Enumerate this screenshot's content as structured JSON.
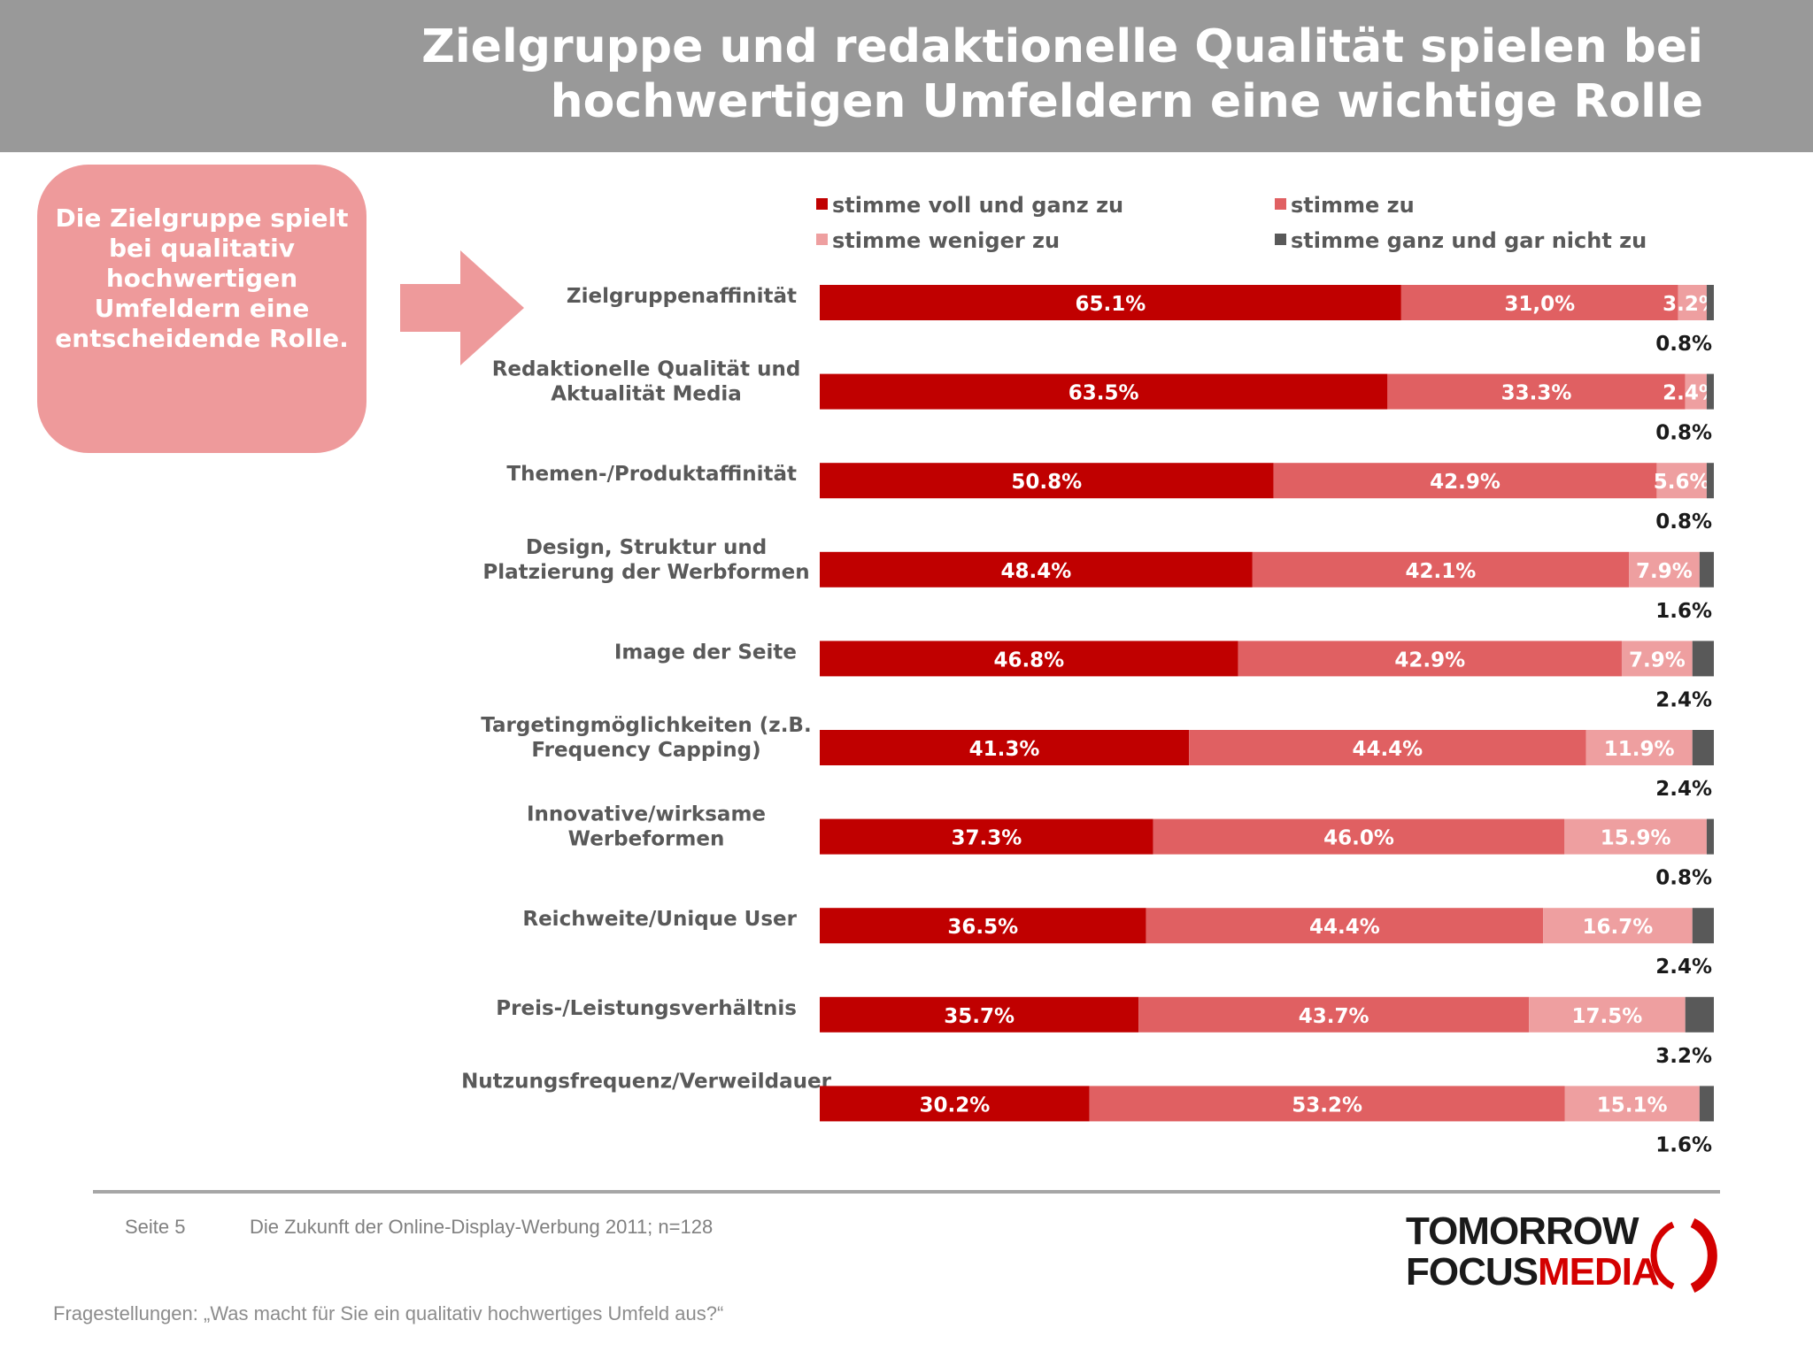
{
  "header": {
    "title_line1": "Zielgruppe und redaktionelle Qualität spielen bei",
    "title_line2": "hochwertigen Umfeldern eine wichtige Rolle"
  },
  "callout": {
    "text": "Die Zielgruppe spielt bei qualitativ hochwertigen Umfeldern eine entscheidende Rolle."
  },
  "footer": {
    "page": "Seite 5",
    "source": "Die Zukunft der Online-Display-Werbung 2011; n=128",
    "question": "Fragestellungen: „Was macht für Sie ein qualitativ hochwertiges Umfeld aus?“"
  },
  "logo": {
    "line1": "TOMORROW",
    "focus": "FOCUS",
    "media": "MEDIA"
  },
  "colors": {
    "header_bg": "#999999",
    "callout_bg": "#ee9a9b",
    "series": [
      "#c00000",
      "#e06062",
      "#ee9fa0",
      "#595959"
    ]
  },
  "chart_data": {
    "type": "bar",
    "orientation": "horizontal",
    "stacked": true,
    "percent_scale": [
      0,
      100
    ],
    "legend_position": "top",
    "categories": [
      "Zielgruppenaffinität",
      "Redaktionelle Qualität und Aktualität Media",
      "Themen-/Produktaffinität",
      "Design, Struktur und Platzierung der Werbformen",
      "Image der Seite",
      "Targetingmöglichkeiten (z.B. Frequency Capping)",
      "Innovative/wirksame Werbeformen",
      "Reichweite/Unique User",
      "Preis-/Leistungsverhältnis",
      "Nutzungsfrequenz/Verweildauer"
    ],
    "series": [
      {
        "name": "stimme voll und ganz zu",
        "values": [
          65.1,
          63.5,
          50.8,
          48.4,
          46.8,
          41.3,
          37.3,
          36.5,
          35.7,
          30.2
        ],
        "labels": [
          "65.1%",
          "63.5%",
          "50.8%",
          "48.4%",
          "46.8%",
          "41.3%",
          "37.3%",
          "36.5%",
          "35.7%",
          "30.2%"
        ]
      },
      {
        "name": "stimme zu",
        "values": [
          31.0,
          33.3,
          42.9,
          42.1,
          42.9,
          44.4,
          46.0,
          44.4,
          43.7,
          53.2
        ],
        "labels": [
          "31,0%",
          "33.3%",
          "42.9%",
          "42.1%",
          "42.9%",
          "44.4%",
          "46.0%",
          "44.4%",
          "43.7%",
          "53.2%"
        ]
      },
      {
        "name": "stimme weniger zu",
        "values": [
          3.2,
          2.4,
          5.6,
          7.9,
          7.9,
          11.9,
          15.9,
          16.7,
          17.5,
          15.1
        ],
        "labels": [
          "3.2%",
          "2.4%",
          "5.6%",
          "7.9%",
          "7.9%",
          "11.9%",
          "15.9%",
          "16.7%",
          "17.5%",
          "15.1%"
        ]
      },
      {
        "name": "stimme ganz und gar nicht zu",
        "values": [
          0.8,
          0.8,
          0.8,
          1.6,
          2.4,
          2.4,
          0.8,
          2.4,
          3.2,
          1.6
        ],
        "labels": [
          "0.8%",
          "0.8%",
          "0.8%",
          "1.6%",
          "2.4%",
          "2.4%",
          "0.8%",
          "2.4%",
          "3.2%",
          "1.6%"
        ]
      }
    ]
  }
}
